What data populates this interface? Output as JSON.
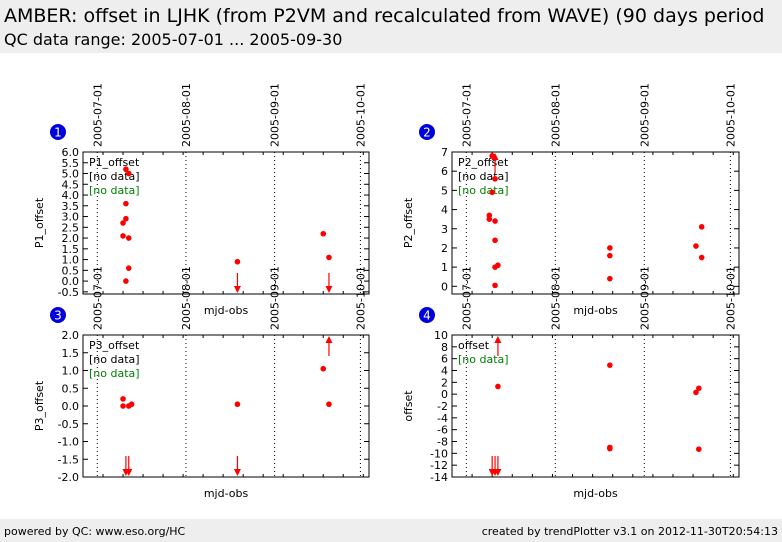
{
  "header": {
    "title": "AMBER: offset in LJHK (from P2VM and recalculated from WAVE) (90 days period",
    "subtitle": "QC data range: 2005-07-01 ... 2005-09-30"
  },
  "footer": {
    "left": "powered by QC: www.eso.org/HC",
    "right": "created by trendPlotter v3.1 on 2012-11-30T20:54:13"
  },
  "colors": {
    "points": "#ff0000",
    "nodata_green": "#008000",
    "badge": "#0000dd",
    "header_bg": "#eeeeee"
  },
  "chart_data": [
    {
      "type": "scatter",
      "panel_number": "1",
      "xlabel": "mjd-obs",
      "ylabel": "P1_offset",
      "date_ticks": [
        "2005-07-01",
        "2005-08-01",
        "2005-09-01",
        "2005-10-01"
      ],
      "xlim": [
        "2005-06-26",
        "2005-10-04"
      ],
      "ylim": [
        -0.6,
        6.0
      ],
      "yticks": [
        -0.5,
        0.0,
        0.5,
        1.0,
        1.5,
        2.0,
        2.5,
        3.0,
        3.5,
        4.0,
        4.5,
        5.0,
        5.5,
        6.0
      ],
      "ytick_labels": [
        "-0.5",
        "0.0",
        "0.5",
        "1.0",
        "1.5",
        "2.0",
        "2.5",
        "3.0",
        "3.5",
        "4.0",
        "4.5",
        "5.0",
        "5.5",
        "6.0"
      ],
      "legend": [
        "P1_offset",
        "[no data]",
        "[no data]"
      ],
      "points": [
        {
          "x": "2005-07-10",
          "y": 2.1
        },
        {
          "x": "2005-07-10",
          "y": 2.7
        },
        {
          "x": "2005-07-11",
          "y": 3.6
        },
        {
          "x": "2005-07-11",
          "y": 2.9
        },
        {
          "x": "2005-07-11",
          "y": 5.2
        },
        {
          "x": "2005-07-12",
          "y": 5.0
        },
        {
          "x": "2005-07-12",
          "y": 2.0
        },
        {
          "x": "2005-07-11",
          "y": 0.0
        },
        {
          "x": "2005-07-12",
          "y": 0.6
        },
        {
          "x": "2005-08-19",
          "y": 0.9
        },
        {
          "x": "2005-09-18",
          "y": 2.2
        },
        {
          "x": "2005-09-20",
          "y": 1.1
        }
      ],
      "off_scale": [
        {
          "x": "2005-08-19",
          "dir": "down"
        },
        {
          "x": "2005-09-20",
          "dir": "down"
        }
      ]
    },
    {
      "type": "scatter",
      "panel_number": "2",
      "xlabel": "mjd-obs",
      "ylabel": "P2_offset",
      "date_ticks": [
        "2005-07-01",
        "2005-08-01",
        "2005-09-01",
        "2005-10-01"
      ],
      "xlim": [
        "2005-06-26",
        "2005-10-04"
      ],
      "ylim": [
        -0.4,
        7.0
      ],
      "yticks": [
        0,
        1,
        2,
        3,
        4,
        5,
        6,
        7
      ],
      "ytick_labels": [
        "0",
        "1",
        "2",
        "3",
        "4",
        "5",
        "6",
        "7"
      ],
      "legend": [
        "P2_offset",
        "[no data]",
        "[no data]"
      ],
      "points": [
        {
          "x": "2005-07-09",
          "y": 3.7
        },
        {
          "x": "2005-07-09",
          "y": 3.5
        },
        {
          "x": "2005-07-10",
          "y": 4.9
        },
        {
          "x": "2005-07-10",
          "y": 6.8
        },
        {
          "x": "2005-07-11",
          "y": 3.4
        },
        {
          "x": "2005-07-11",
          "y": 2.4
        },
        {
          "x": "2005-07-11",
          "y": 1.0
        },
        {
          "x": "2005-07-11",
          "y": 0.05
        },
        {
          "x": "2005-07-12",
          "y": 1.1
        },
        {
          "x": "2005-07-11",
          "y": 5.6
        },
        {
          "x": "2005-08-20",
          "y": 2.0
        },
        {
          "x": "2005-08-20",
          "y": 1.6
        },
        {
          "x": "2005-08-20",
          "y": 0.4
        },
        {
          "x": "2005-09-19",
          "y": 2.1
        },
        {
          "x": "2005-09-21",
          "y": 3.1
        },
        {
          "x": "2005-09-21",
          "y": 1.5
        }
      ],
      "off_scale": [
        {
          "x": "2005-07-11",
          "dir": "up"
        }
      ]
    },
    {
      "type": "scatter",
      "panel_number": "3",
      "xlabel": "mjd-obs",
      "ylabel": "P3_offset",
      "date_ticks": [
        "2005-07-01",
        "2005-08-01",
        "2005-09-01",
        "2005-10-01"
      ],
      "xlim": [
        "2005-06-26",
        "2005-10-04"
      ],
      "ylim": [
        -2.0,
        2.0
      ],
      "yticks": [
        -2.0,
        -1.5,
        -1.0,
        -0.5,
        0.0,
        0.5,
        1.0,
        1.5,
        2.0
      ],
      "ytick_labels": [
        "-2.0",
        "-1.5",
        "-1.0",
        "-0.5",
        "0.0",
        "0.5",
        "1.0",
        "1.5",
        "2.0"
      ],
      "legend": [
        "P3_offset",
        "[no data]",
        "[no data]"
      ],
      "points": [
        {
          "x": "2005-07-10",
          "y": 0.2
        },
        {
          "x": "2005-07-10",
          "y": 0.0
        },
        {
          "x": "2005-07-12",
          "y": 0.0
        },
        {
          "x": "2005-07-13",
          "y": 0.05
        },
        {
          "x": "2005-08-19",
          "y": 0.05
        },
        {
          "x": "2005-09-18",
          "y": 1.05
        },
        {
          "x": "2005-09-20",
          "y": 0.05
        }
      ],
      "off_scale": [
        {
          "x": "2005-07-11",
          "dir": "down"
        },
        {
          "x": "2005-07-12",
          "dir": "down"
        },
        {
          "x": "2005-08-19",
          "dir": "down"
        },
        {
          "x": "2005-09-20",
          "dir": "up"
        }
      ]
    },
    {
      "type": "scatter",
      "panel_number": "4",
      "xlabel": "mjd-obs",
      "ylabel": "offset",
      "date_ticks": [
        "2005-07-01",
        "2005-08-01",
        "2005-09-01",
        "2005-10-01"
      ],
      "xlim": [
        "2005-06-26",
        "2005-10-04"
      ],
      "ylim": [
        -14,
        10
      ],
      "yticks": [
        -14,
        -12,
        -10,
        -8,
        -6,
        -4,
        -2,
        0,
        2,
        4,
        6,
        8,
        10
      ],
      "ytick_labels": [
        "-14",
        "-12",
        "-10",
        "-8",
        "-6",
        "-4",
        "-2",
        "0",
        "2",
        "4",
        "6",
        "8",
        "10"
      ],
      "legend": [
        "offset",
        "[no data]"
      ],
      "points": [
        {
          "x": "2005-07-12",
          "y": 1.3
        },
        {
          "x": "2005-08-20",
          "y": 4.9
        },
        {
          "x": "2005-08-20",
          "y": -9.0
        },
        {
          "x": "2005-08-20",
          "y": -9.2
        },
        {
          "x": "2005-09-19",
          "y": 0.3
        },
        {
          "x": "2005-09-20",
          "y": 1.0
        },
        {
          "x": "2005-09-20",
          "y": -9.3
        }
      ],
      "off_scale": [
        {
          "x": "2005-07-10",
          "dir": "down"
        },
        {
          "x": "2005-07-11",
          "dir": "down"
        },
        {
          "x": "2005-07-12",
          "dir": "down"
        },
        {
          "x": "2005-07-12",
          "dir": "up"
        }
      ]
    }
  ]
}
